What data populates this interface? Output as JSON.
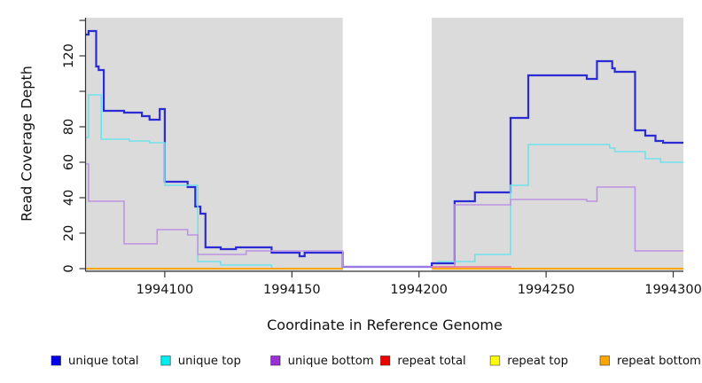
{
  "figure": {
    "x_axis_title": "Coordinate in Reference Genome",
    "y_axis_title": "Read Coverage Depth"
  },
  "chart_data": {
    "type": "line",
    "step": true,
    "title": "",
    "xlabel": "Coordinate in Reference Genome",
    "ylabel": "Read Coverage Depth",
    "xlim": [
      1994069,
      1994304
    ],
    "ylim": [
      0,
      140
    ],
    "grid": false,
    "legend_position": "bottom",
    "panel_bg": "#DBDBDB",
    "text_color": "#111111",
    "axis_color": "#333333",
    "no_data_region": {
      "from": 1994170,
      "to": 1994205,
      "color": "#FFFFFF"
    },
    "x_ticks": [
      {
        "value": 1994100,
        "label": "1994100"
      },
      {
        "value": 1994150,
        "label": "1994150"
      },
      {
        "value": 1994200,
        "label": "1994200"
      },
      {
        "value": 1994250,
        "label": "1994250"
      },
      {
        "value": 1994300,
        "label": "1994300"
      }
    ],
    "y_ticks": [
      {
        "value": 0,
        "label": "0"
      },
      {
        "value": 20,
        "label": "20"
      },
      {
        "value": 40,
        "label": "40"
      },
      {
        "value": 60,
        "label": "60"
      },
      {
        "value": 80,
        "label": "80"
      },
      {
        "value": 100,
        "label": ""
      },
      {
        "value": 120,
        "label": "120"
      },
      {
        "value": 140,
        "label": ""
      }
    ],
    "series": [
      {
        "name": "unique_total",
        "label": "unique total",
        "legend_color": "#0000EE",
        "line_color": "#2B2BD5",
        "line_width": 2.2,
        "points": [
          [
            1994069,
            132
          ],
          [
            1994070,
            134
          ],
          [
            1994073,
            114
          ],
          [
            1994074,
            112
          ],
          [
            1994076,
            89
          ],
          [
            1994084,
            88
          ],
          [
            1994091,
            86
          ],
          [
            1994094,
            84
          ],
          [
            1994098,
            90
          ],
          [
            1994100,
            49
          ],
          [
            1994109,
            46
          ],
          [
            1994112,
            35
          ],
          [
            1994114,
            31
          ],
          [
            1994116,
            12
          ],
          [
            1994122,
            11
          ],
          [
            1994128,
            12
          ],
          [
            1994142,
            9
          ],
          [
            1994153,
            7
          ],
          [
            1994155,
            9
          ],
          [
            1994170,
            1
          ],
          [
            1994205,
            3
          ],
          [
            1994214,
            38
          ],
          [
            1994222,
            43
          ],
          [
            1994236,
            85
          ],
          [
            1994243,
            109
          ],
          [
            1994266,
            107
          ],
          [
            1994270,
            117
          ],
          [
            1994276,
            113
          ],
          [
            1994277,
            111
          ],
          [
            1994285,
            78
          ],
          [
            1994289,
            75
          ],
          [
            1994293,
            72
          ],
          [
            1994296,
            71
          ]
        ],
        "end": 1994304
      },
      {
        "name": "unique_top",
        "label": "unique top",
        "legend_color": "#00EEEE",
        "line_color": "#6FE2E9",
        "line_width": 1.6,
        "points": [
          [
            1994069,
            74
          ],
          [
            1994070,
            98
          ],
          [
            1994075,
            73
          ],
          [
            1994086,
            72
          ],
          [
            1994094,
            71
          ],
          [
            1994100,
            47
          ],
          [
            1994113,
            4
          ],
          [
            1994122,
            2
          ],
          [
            1994142,
            0
          ],
          [
            1994170,
            null
          ],
          [
            1994207,
            4
          ],
          [
            1994222,
            8
          ],
          [
            1994236,
            47
          ],
          [
            1994243,
            70
          ],
          [
            1994275,
            68
          ],
          [
            1994277,
            66
          ],
          [
            1994289,
            62
          ],
          [
            1994295,
            60
          ]
        ],
        "end": 1994304
      },
      {
        "name": "unique_bottom",
        "label": "unique bottom",
        "legend_color": "#9B30D9",
        "line_color": "#BD93E4",
        "line_width": 1.6,
        "points": [
          [
            1994069,
            59
          ],
          [
            1994070,
            38
          ],
          [
            1994084,
            14
          ],
          [
            1994097,
            22
          ],
          [
            1994109,
            19
          ],
          [
            1994113,
            8
          ],
          [
            1994132,
            10
          ],
          [
            1994170,
            1
          ],
          [
            1994205,
            1
          ],
          [
            1994214,
            36
          ],
          [
            1994236,
            39
          ],
          [
            1994266,
            38
          ],
          [
            1994270,
            46
          ],
          [
            1994285,
            10
          ]
        ],
        "end": 1994304
      },
      {
        "name": "repeat_total",
        "label": "repeat total",
        "legend_color": "#EE0000",
        "line_color": "#E8719A",
        "line_width": 1.4,
        "points": [
          [
            1994069,
            0
          ],
          [
            1994170,
            null
          ],
          [
            1994205,
            1
          ],
          [
            1994236,
            0
          ]
        ],
        "end": 1994304
      },
      {
        "name": "repeat_top",
        "label": "repeat top",
        "legend_color": "#FFFF00",
        "line_color": "#FFFF00",
        "line_width": 1.4,
        "points": [
          [
            1994069,
            0
          ],
          [
            1994170,
            null
          ],
          [
            1994205,
            0
          ]
        ],
        "end": 1994304
      },
      {
        "name": "repeat_bottom",
        "label": "repeat bottom",
        "legend_color": "#FFA500",
        "line_color": "#FFA500",
        "line_width": 2,
        "points": [
          [
            1994069,
            0
          ],
          [
            1994170,
            null
          ],
          [
            1994205,
            0
          ]
        ],
        "end": 1994304
      }
    ]
  }
}
